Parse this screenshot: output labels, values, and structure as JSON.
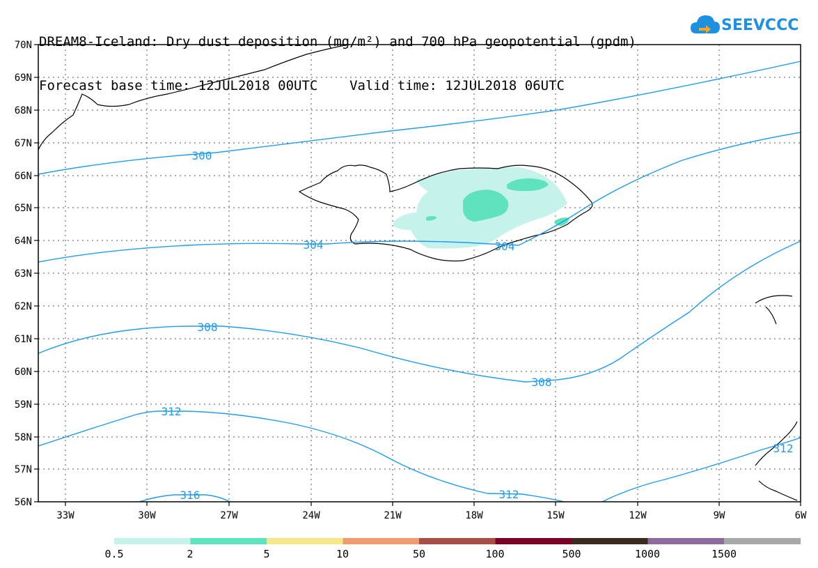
{
  "title": {
    "line1": "DREAM8-Iceland: Dry dust deposition (mg/m²) and 700 hPa geopotential (gpdm)",
    "line2": "Forecast base time: 12JUL2018 00UTC    Valid time: 12JUL2018 06UTC"
  },
  "logo": {
    "text": "SEEVCCC",
    "icon": "cloud-icon",
    "color": "#1e90e0"
  },
  "map": {
    "lat_labels": [
      "70N",
      "69N",
      "68N",
      "67N",
      "66N",
      "65N",
      "64N",
      "63N",
      "62N",
      "61N",
      "60N",
      "59N",
      "58N",
      "57N",
      "56N"
    ],
    "lon_labels": [
      "33W",
      "30W",
      "27W",
      "24W",
      "21W",
      "18W",
      "15W",
      "12W",
      "9W",
      "6W"
    ],
    "contours": [
      {
        "label": "300",
        "color": "#1f9bf0"
      },
      {
        "label": "304",
        "color": "#1f9bf0"
      },
      {
        "label": "308",
        "color": "#1f9bf0"
      },
      {
        "label": "312",
        "color": "#1f9bf0"
      },
      {
        "label": "316",
        "color": "#1f9bf0"
      }
    ],
    "contour_label_extra": {
      "label_304b": "304",
      "label_308b": "308",
      "label_312b": "312",
      "label_312c": "312"
    }
  },
  "legend": {
    "labels": [
      "0.5",
      "2",
      "5",
      "10",
      "50",
      "100",
      "500",
      "1000",
      "1500"
    ],
    "colors": [
      "#c6f2ec",
      "#5ee3be",
      "#f6e889",
      "#f09a72",
      "#a84e44",
      "#7b0226",
      "#3b2a1c",
      "#8e6a9e",
      "#a8a8a8"
    ]
  }
}
